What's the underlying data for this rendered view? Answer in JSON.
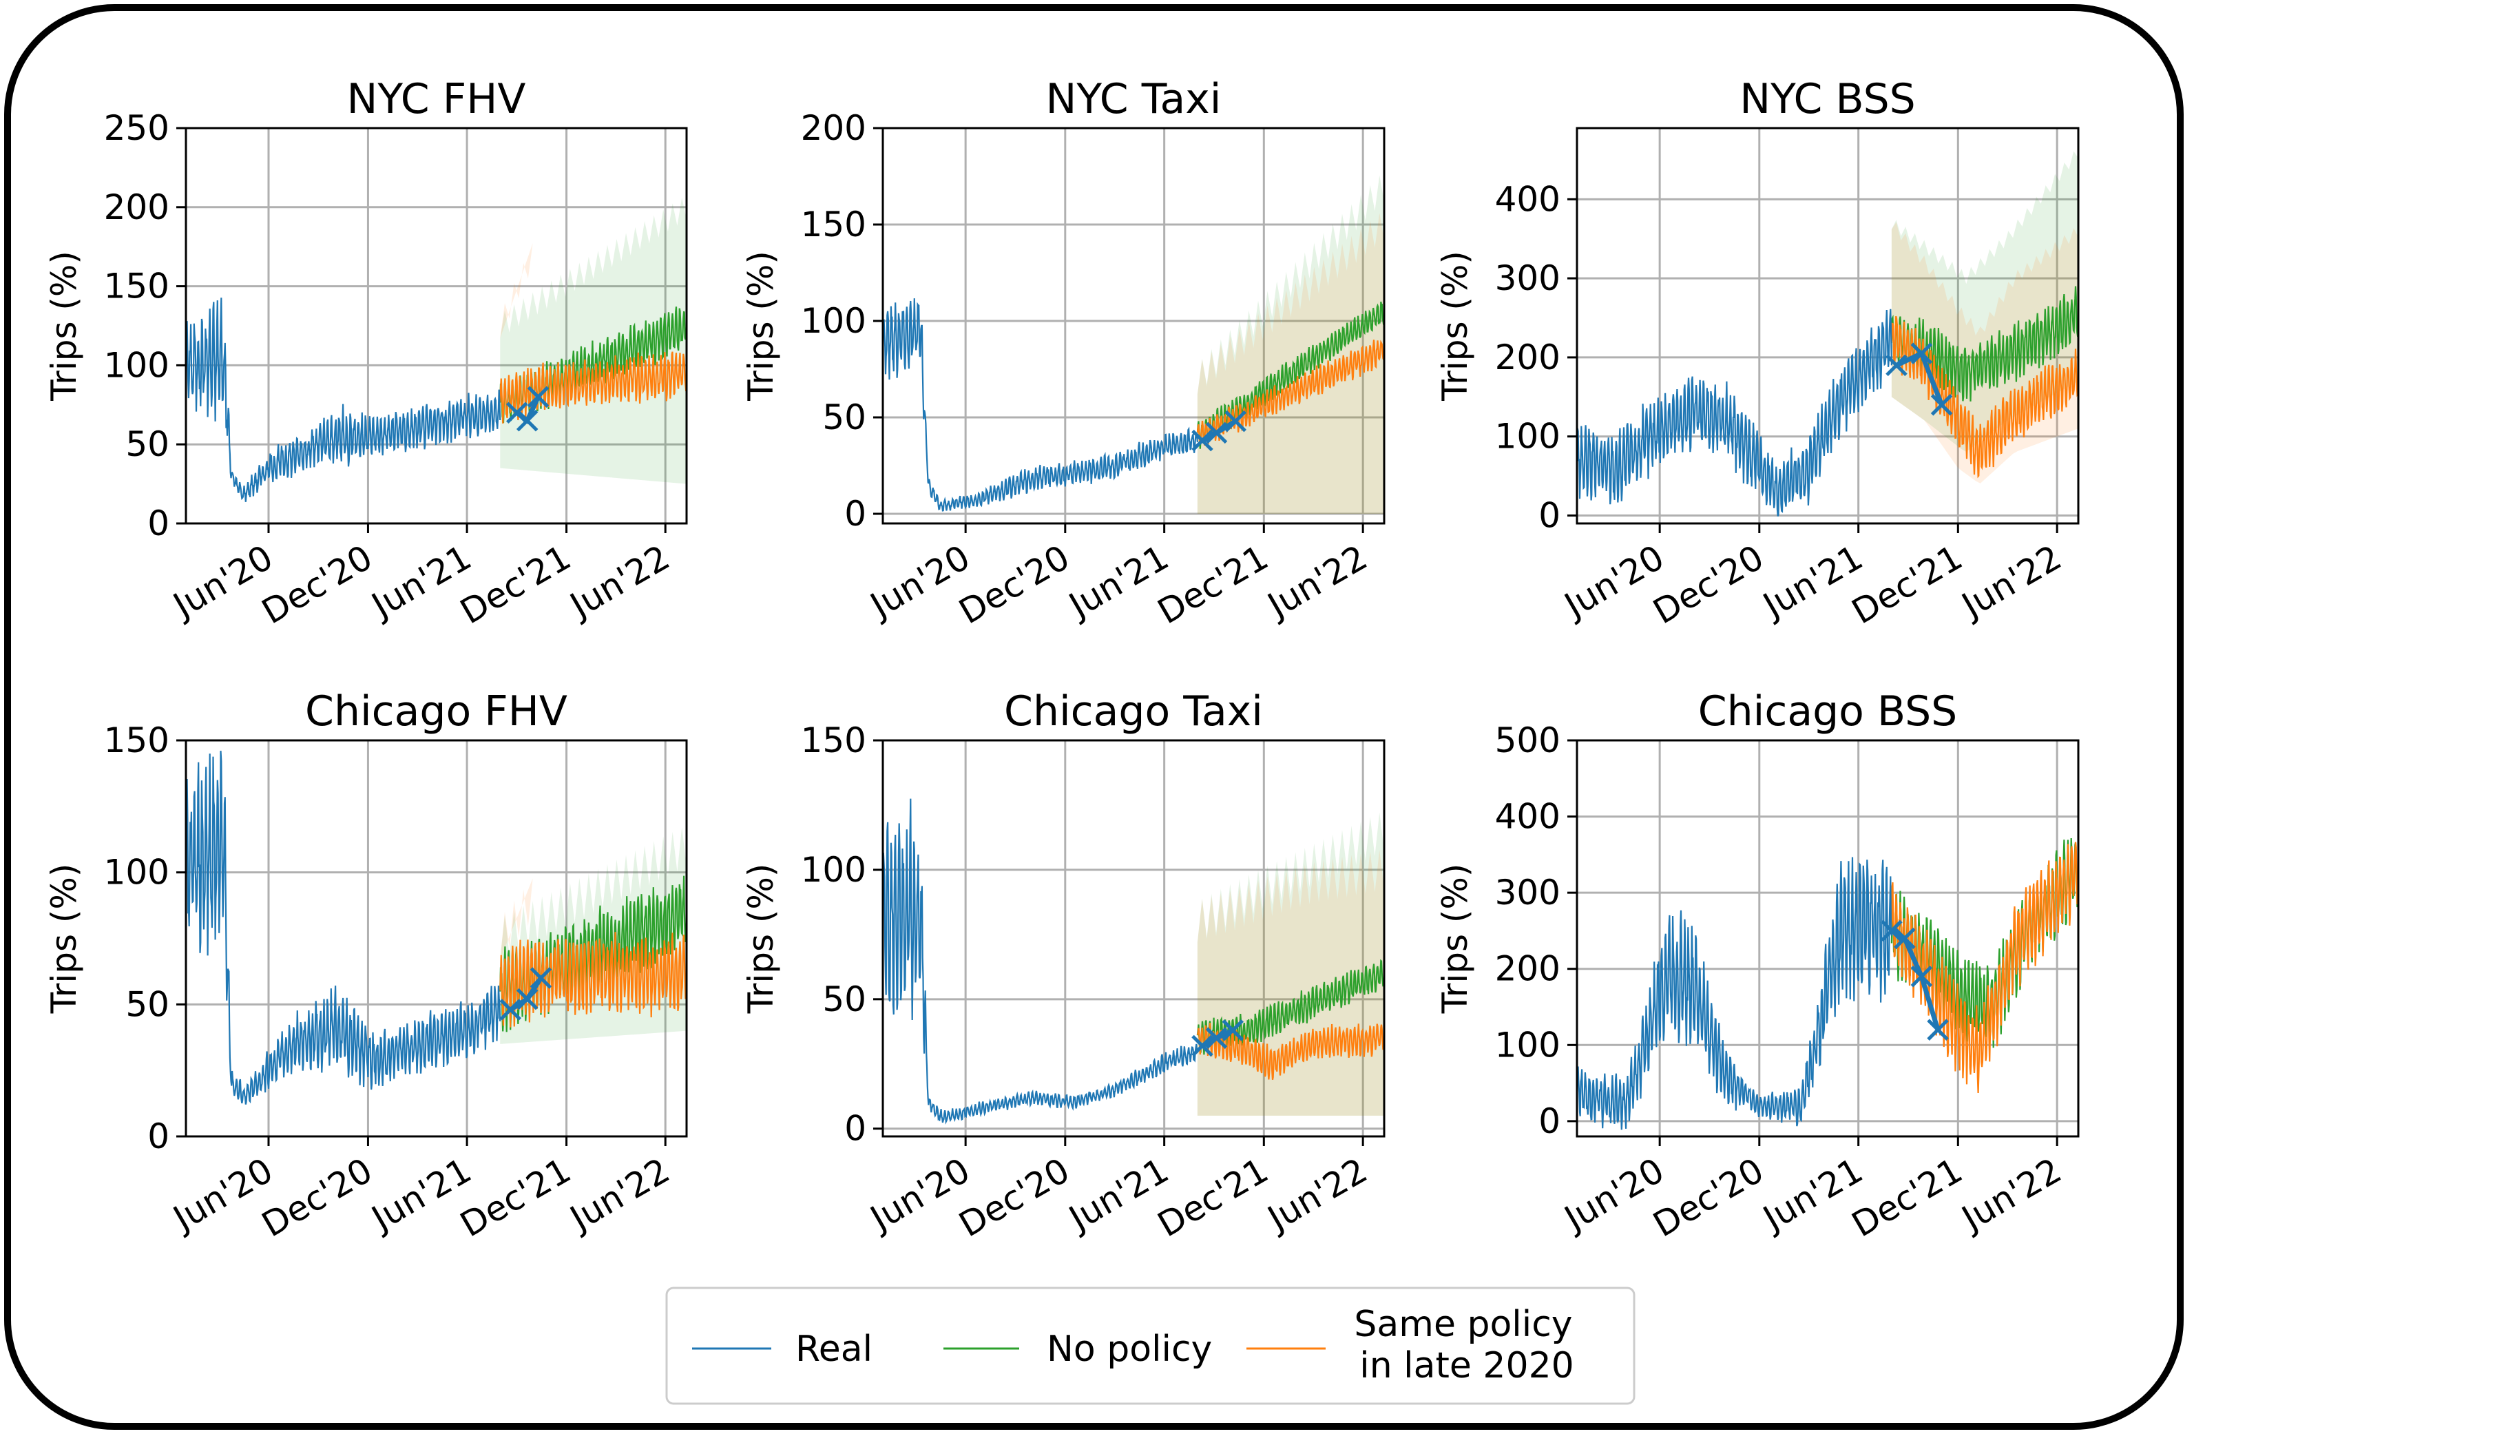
{
  "legend": {
    "real": "Real",
    "no_policy": "No policy",
    "same_policy_line1": "Same policy",
    "same_policy_line2": "in late 2020"
  },
  "colors": {
    "real": "#1f77b4",
    "no_policy": "#2ca02c",
    "same_policy": "#ff7f0e",
    "grid": "#b0b0b0"
  },
  "chart_data": [
    {
      "type": "line",
      "title": "NYC FHV",
      "ylabel": "Trips (%)",
      "ylim": [
        0,
        250
      ],
      "yticks": [
        0,
        50,
        100,
        150,
        200,
        250
      ],
      "xlim": [
        "2020-01-01",
        "2022-07-10"
      ],
      "xticks": [
        "2020-06-01",
        "2020-12-01",
        "2021-06-01",
        "2021-12-01",
        "2022-06-01"
      ],
      "xticklabels": [
        "Jun'20",
        "Dec'20",
        "Jun'21",
        "Dec'21",
        "Jun'22"
      ],
      "projection_start": "2021-08-01",
      "real": {
        "x": [
          "2020-01-01",
          "2020-03-10",
          "2020-03-25",
          "2020-04-15",
          "2020-06-01",
          "2020-09-01",
          "2020-10-15",
          "2020-12-01",
          "2021-03-01",
          "2021-06-01",
          "2021-08-01"
        ],
        "y": [
          100,
          105,
          30,
          18,
          35,
          50,
          55,
          55,
          60,
          68,
          70
        ]
      },
      "real_amplitude": [
        20,
        30,
        4,
        4,
        8,
        10,
        14,
        10,
        10,
        10,
        10
      ],
      "markers": {
        "x": [
          "2021-09-01",
          "2021-09-20",
          "2021-10-10"
        ],
        "y": [
          70,
          65,
          80
        ]
      },
      "no_policy": {
        "x": [
          "2021-08-01",
          "2022-07-10"
        ],
        "y": [
          75,
          125
        ],
        "amplitude": 12,
        "band_low": [
          35,
          25
        ],
        "band_high": [
          125,
          200
        ]
      },
      "same_policy": {
        "x": [
          "2021-08-01",
          "2021-10-01",
          "2022-07-10"
        ],
        "y": [
          75,
          85,
          95
        ],
        "amplitude": 12,
        "band_low": [
          35,
          25
        ],
        "band_high": [
          125,
          170
        ]
      }
    },
    {
      "type": "line",
      "title": "NYC Taxi",
      "ylabel": "Trips (%)",
      "ylim": [
        -5,
        200
      ],
      "yticks": [
        0,
        50,
        100,
        150,
        200
      ],
      "xlim": [
        "2020-01-01",
        "2022-07-10"
      ],
      "xticks": [
        "2020-06-01",
        "2020-12-01",
        "2021-06-01",
        "2021-12-01",
        "2022-06-01"
      ],
      "xticklabels": [
        "Jun'20",
        "Dec'20",
        "Jun'21",
        "Dec'21",
        "Jun'22"
      ],
      "projection_start": "2021-08-01",
      "real": {
        "x": [
          "2020-01-01",
          "2020-03-10",
          "2020-03-25",
          "2020-04-15",
          "2020-07-01",
          "2020-10-01",
          "2020-12-01",
          "2021-03-01",
          "2021-06-01",
          "2021-08-01"
        ],
        "y": [
          90,
          95,
          15,
          4,
          8,
          18,
          20,
          25,
          35,
          38
        ]
      },
      "real_amplitude": [
        15,
        15,
        3,
        2,
        3,
        5,
        5,
        5,
        5,
        5
      ],
      "markers": {
        "x": [
          "2021-08-10",
          "2021-09-05",
          "2021-10-10"
        ],
        "y": [
          38,
          42,
          48
        ]
      },
      "no_policy": {
        "x": [
          "2021-08-01",
          "2022-07-10"
        ],
        "y": [
          40,
          105
        ],
        "amplitude": 6,
        "band_low": [
          0,
          0
        ],
        "band_high": [
          70,
          170
        ]
      },
      "same_policy": {
        "x": [
          "2021-08-01",
          "2022-07-10"
        ],
        "y": [
          40,
          85
        ],
        "amplitude": 6,
        "band_low": [
          0,
          0
        ],
        "band_high": [
          70,
          150
        ]
      }
    },
    {
      "type": "line",
      "title": "NYC BSS",
      "ylabel": "Trips (%)",
      "ylim": [
        -10,
        490
      ],
      "yticks": [
        0,
        100,
        200,
        300,
        400
      ],
      "xlim": [
        "2020-01-01",
        "2022-07-10"
      ],
      "xticks": [
        "2020-06-01",
        "2020-12-01",
        "2021-06-01",
        "2021-12-01",
        "2022-06-01"
      ],
      "xticklabels": [
        "Jun'20",
        "Dec'20",
        "Jun'21",
        "Dec'21",
        "Jun'22"
      ],
      "projection_start": "2021-08-01",
      "real": {
        "x": [
          "2020-01-01",
          "2020-03-15",
          "2020-06-01",
          "2020-08-01",
          "2020-10-01",
          "2020-11-15",
          "2021-01-01",
          "2021-03-01",
          "2021-05-01",
          "2021-07-01",
          "2021-08-01"
        ],
        "y": [
          70,
          60,
          110,
          130,
          120,
          80,
          30,
          60,
          150,
          200,
          220
        ]
      },
      "real_amplitude": [
        35,
        35,
        35,
        35,
        35,
        35,
        25,
        35,
        35,
        35,
        35
      ],
      "markers": {
        "x": [
          "2021-08-10",
          "2021-09-25",
          "2021-11-01"
        ],
        "y": [
          190,
          205,
          140
        ]
      },
      "no_policy": {
        "x": [
          "2021-08-01",
          "2021-10-01",
          "2021-12-15",
          "2022-03-01",
          "2022-07-10"
        ],
        "y": [
          225,
          210,
          180,
          200,
          255
        ],
        "amplitude": 28,
        "band_low": [
          150,
          120,
          80,
          120,
          170
        ],
        "band_high": [
          370,
          340,
          300,
          350,
          460
        ]
      },
      "same_policy": {
        "x": [
          "2021-08-01",
          "2021-10-01",
          "2021-12-01",
          "2022-01-10",
          "2022-03-15",
          "2022-07-10"
        ],
        "y": [
          225,
          190,
          120,
          80,
          130,
          175
        ],
        "amplitude": 28,
        "band_low": [
          150,
          120,
          60,
          40,
          80,
          110
        ],
        "band_high": [
          370,
          320,
          260,
          230,
          300,
          360
        ]
      }
    },
    {
      "type": "line",
      "title": "Chicago FHV",
      "ylabel": "Trips (%)",
      "ylim": [
        0,
        150
      ],
      "yticks": [
        0,
        50,
        100,
        150
      ],
      "xlim": [
        "2020-01-01",
        "2022-07-10"
      ],
      "xticks": [
        "2020-06-01",
        "2020-12-01",
        "2021-06-01",
        "2021-12-01",
        "2022-06-01"
      ],
      "xticklabels": [
        "Jun'20",
        "Dec'20",
        "Jun'21",
        "Dec'21",
        "Jun'22"
      ],
      "projection_start": "2021-08-01",
      "real": {
        "x": [
          "2020-01-01",
          "2020-03-10",
          "2020-03-25",
          "2020-04-20",
          "2020-07-01",
          "2020-10-01",
          "2020-12-15",
          "2021-03-01",
          "2021-06-01",
          "2021-08-01"
        ],
        "y": [
          100,
          110,
          20,
          15,
          32,
          42,
          28,
          35,
          40,
          48
        ]
      },
      "real_amplitude": [
        25,
        30,
        4,
        3,
        8,
        12,
        8,
        8,
        8,
        8
      ],
      "markers": {
        "x": [
          "2021-08-20",
          "2021-09-20",
          "2021-10-15"
        ],
        "y": [
          48,
          52,
          60
        ]
      },
      "no_policy": {
        "x": [
          "2021-08-01",
          "2022-07-10"
        ],
        "y": [
          55,
          85
        ],
        "amplitude": 12,
        "band_low": [
          35,
          40
        ],
        "band_high": [
          75,
          110
        ]
      },
      "same_policy": {
        "x": [
          "2021-08-01",
          "2021-10-01",
          "2022-07-10"
        ],
        "y": [
          55,
          60,
          62
        ],
        "amplitude": 12,
        "band_low": [
          35,
          40
        ],
        "band_high": [
          75,
          90
        ]
      }
    },
    {
      "type": "line",
      "title": "Chicago Taxi",
      "ylabel": "Trips (%)",
      "ylim": [
        -3,
        150
      ],
      "yticks": [
        0,
        50,
        100,
        150
      ],
      "xlim": [
        "2020-01-01",
        "2022-07-10"
      ],
      "xticks": [
        "2020-06-01",
        "2020-12-01",
        "2021-06-01",
        "2021-12-01",
        "2022-06-01"
      ],
      "xticklabels": [
        "Jun'20",
        "Dec'20",
        "Jun'21",
        "Dec'21",
        "Jun'22"
      ],
      "projection_start": "2021-08-01",
      "real": {
        "x": [
          "2020-01-01",
          "2020-03-10",
          "2020-03-25",
          "2020-04-20",
          "2020-07-01",
          "2020-10-01",
          "2020-12-15",
          "2021-03-01",
          "2021-06-01",
          "2021-08-01"
        ],
        "y": [
          80,
          85,
          10,
          4,
          8,
          12,
          10,
          15,
          25,
          30
        ]
      },
      "real_amplitude": [
        30,
        30,
        2,
        2,
        2,
        2,
        2,
        2,
        3,
        3
      ],
      "markers": {
        "x": [
          "2021-08-10",
          "2021-09-05",
          "2021-10-05"
        ],
        "y": [
          32,
          35,
          38
        ]
      },
      "no_policy": {
        "x": [
          "2021-08-01",
          "2021-11-01",
          "2022-07-10"
        ],
        "y": [
          35,
          38,
          60
        ],
        "amplitude": 5,
        "band_low": [
          5,
          5,
          5
        ],
        "band_high": [
          80,
          90,
          115
        ]
      },
      "same_policy": {
        "x": [
          "2021-08-01",
          "2021-10-15",
          "2021-12-15",
          "2022-03-01",
          "2022-07-10"
        ],
        "y": [
          35,
          32,
          25,
          33,
          35
        ],
        "amplitude": 5,
        "band_low": [
          5,
          5,
          5,
          5,
          5
        ],
        "band_high": [
          80,
          85,
          90,
          95,
          100
        ]
      }
    },
    {
      "type": "line",
      "title": "Chicago BSS",
      "ylabel": "Trips (%)",
      "ylim": [
        -20,
        500
      ],
      "yticks": [
        0,
        100,
        200,
        300,
        400,
        500
      ],
      "xlim": [
        "2020-01-01",
        "2022-07-10"
      ],
      "xticks": [
        "2020-06-01",
        "2020-12-01",
        "2021-06-01",
        "2021-12-01",
        "2022-06-01"
      ],
      "xticklabels": [
        "Jun'20",
        "Dec'20",
        "Jun'21",
        "Dec'21",
        "Jun'22"
      ],
      "projection_start": "2021-08-01",
      "real": {
        "x": [
          "2020-01-01",
          "2020-04-01",
          "2020-06-15",
          "2020-08-01",
          "2020-10-01",
          "2020-12-01",
          "2021-02-15",
          "2021-05-01",
          "2021-07-01",
          "2021-08-01"
        ],
        "y": [
          40,
          20,
          200,
          180,
          60,
          20,
          20,
          250,
          260,
          240
        ]
      },
      "real_amplitude": [
        30,
        25,
        60,
        60,
        30,
        10,
        20,
        70,
        70,
        60
      ],
      "markers": {
        "x": [
          "2021-08-01",
          "2021-08-25",
          "2021-09-25",
          "2021-10-25"
        ],
        "y": [
          250,
          240,
          190,
          120
        ]
      },
      "no_policy": {
        "x": [
          "2021-08-01",
          "2021-10-01",
          "2021-12-01",
          "2022-02-01",
          "2022-04-15",
          "2022-07-10"
        ],
        "y": [
          250,
          220,
          170,
          150,
          260,
          330
        ],
        "amplitude": 45,
        "band_low": [
          250,
          220,
          170,
          150,
          260,
          330
        ],
        "band_high": [
          250,
          220,
          170,
          150,
          260,
          330
        ]
      },
      "same_policy": {
        "x": [
          "2021-08-01",
          "2021-10-01",
          "2021-12-01",
          "2022-01-10",
          "2022-03-15",
          "2022-07-10"
        ],
        "y": [
          260,
          200,
          120,
          90,
          230,
          330
        ],
        "amplitude": 45,
        "band_low": [
          260,
          200,
          120,
          90,
          230,
          330
        ],
        "band_high": [
          260,
          200,
          120,
          90,
          230,
          330
        ]
      }
    }
  ]
}
